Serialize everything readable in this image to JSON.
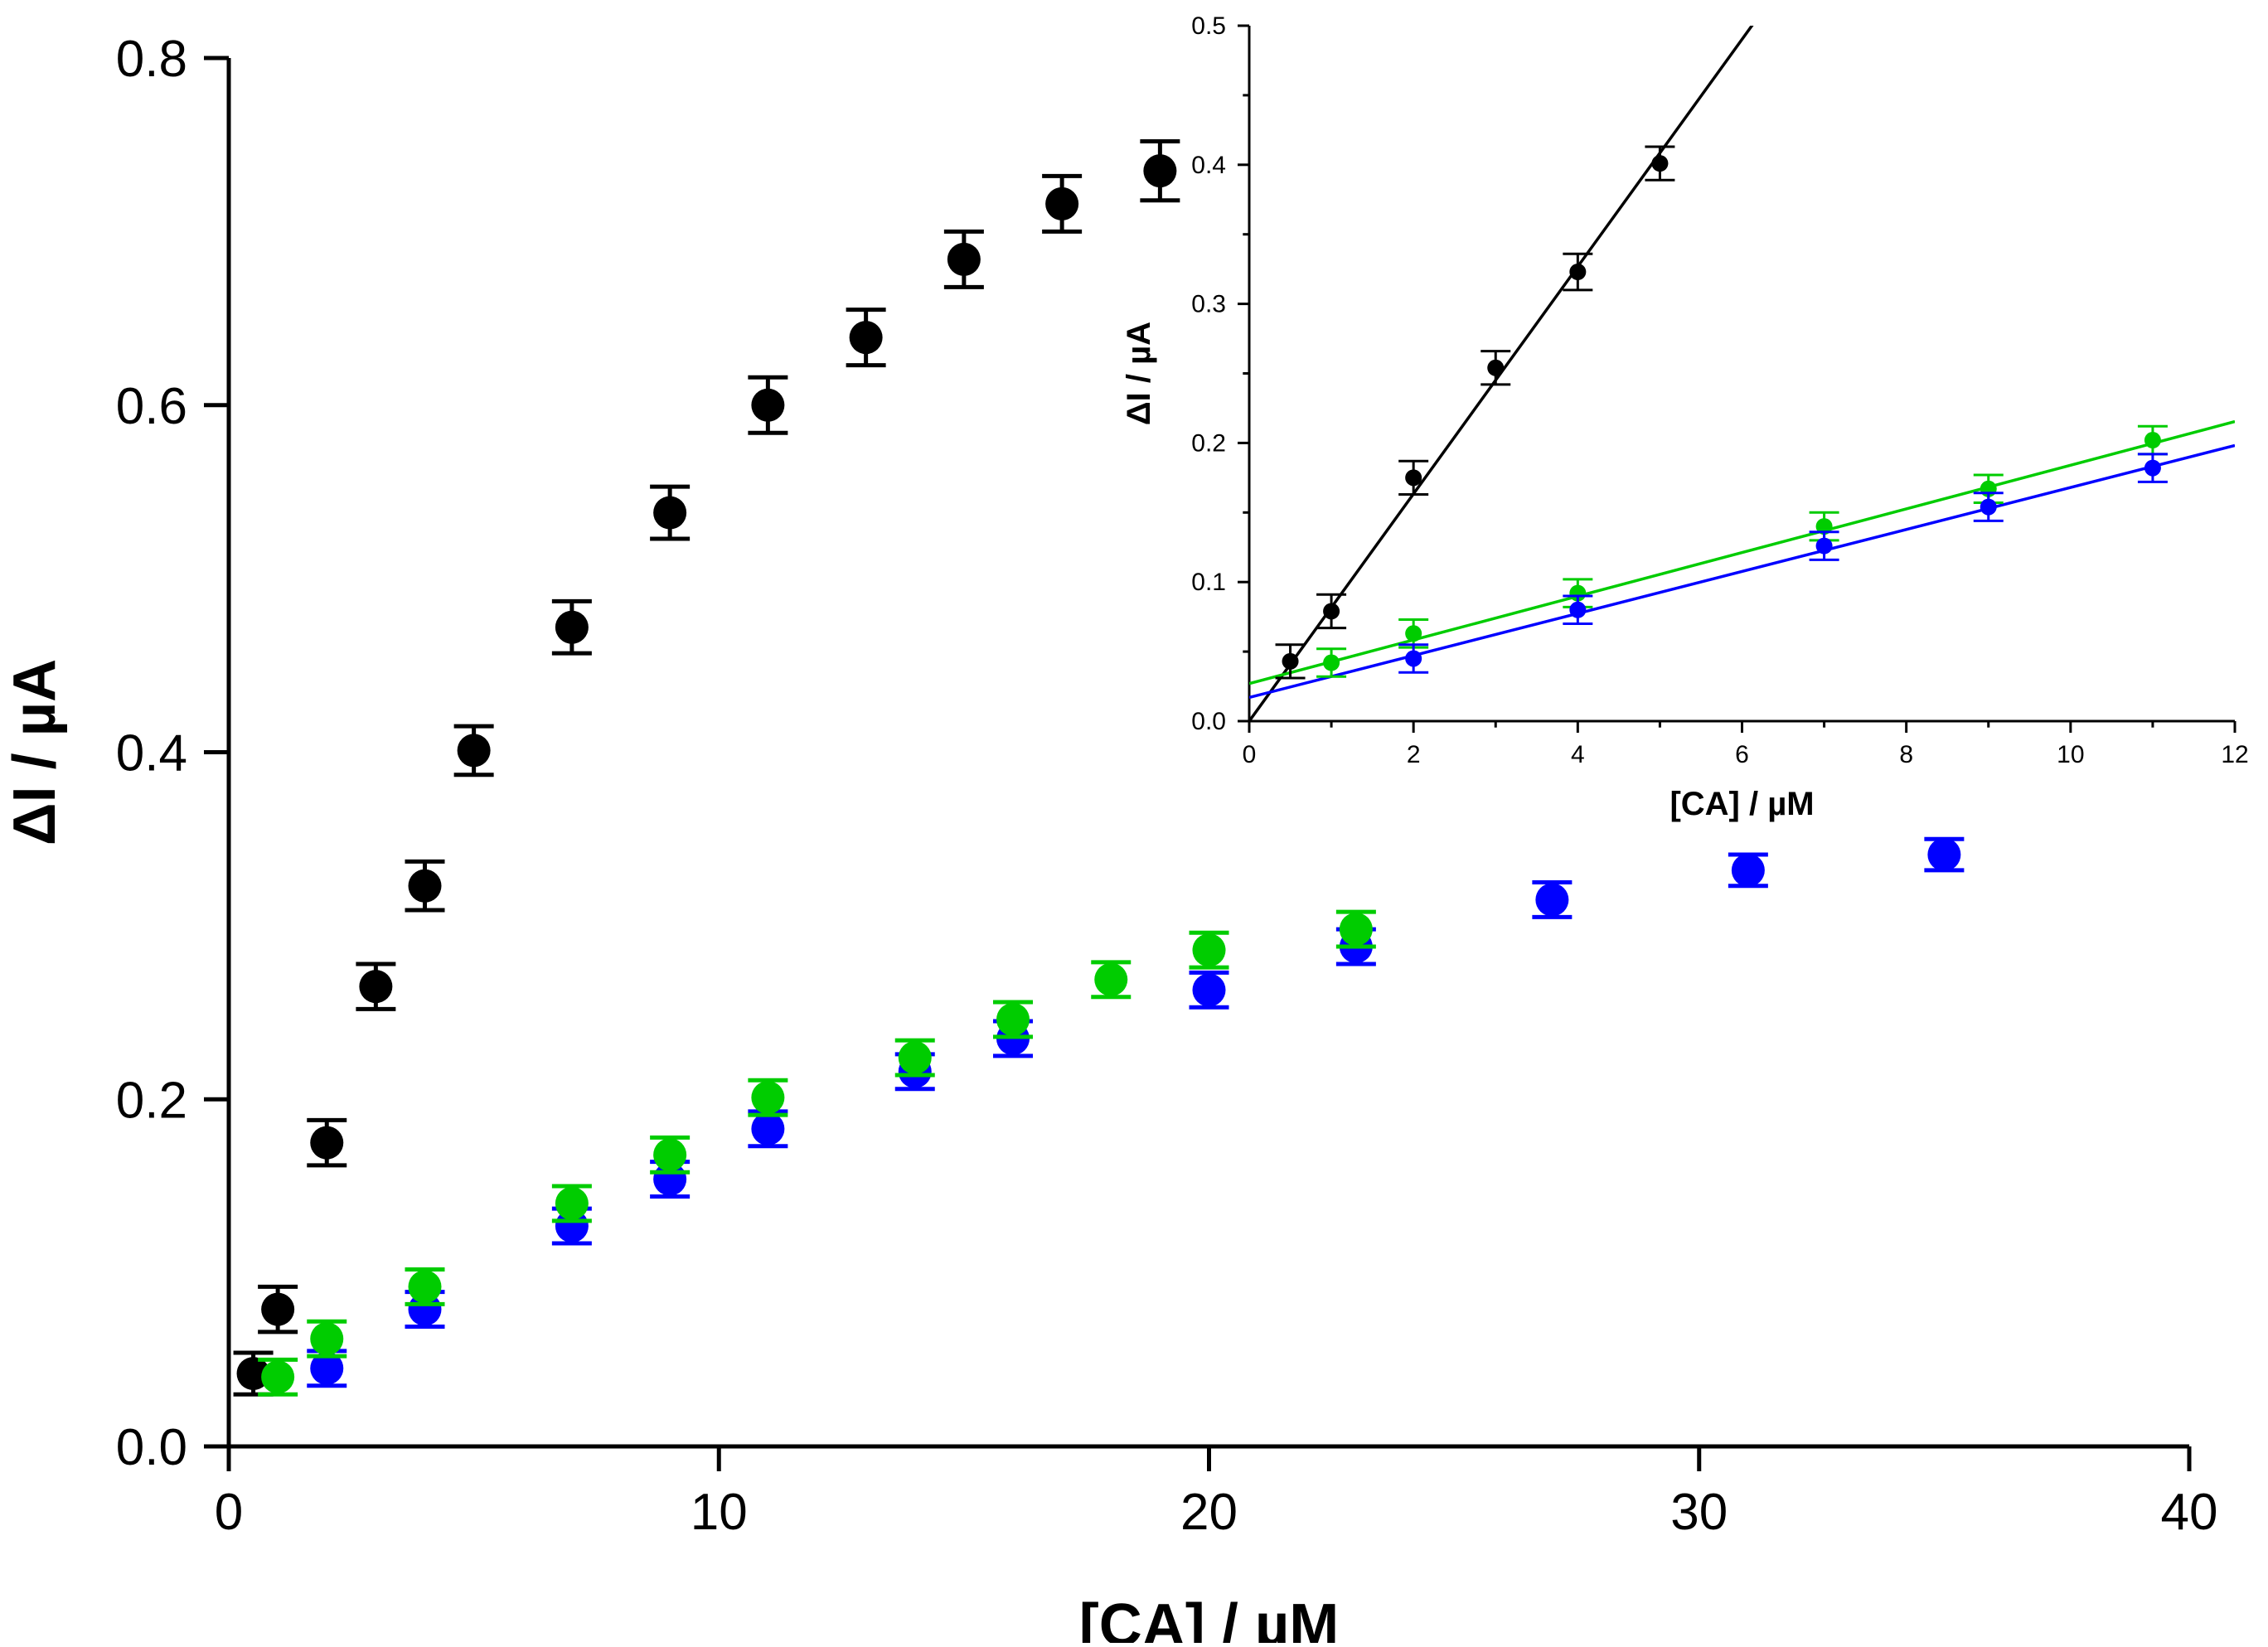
{
  "chart_data": [
    {
      "type": "scatter",
      "xlabel": "[CA] / µM",
      "ylabel": "ΔI / µA",
      "xlim": [
        0,
        40
      ],
      "ylim": [
        0,
        0.8
      ],
      "x_ticks": [
        "0",
        "10",
        "20",
        "30",
        "40"
      ],
      "y_ticks": [
        "0.0",
        "0.2",
        "0.4",
        "0.6",
        "0.8"
      ],
      "series": [
        {
          "name": "black",
          "color": "#000000",
          "x": [
            0.5,
            1,
            2,
            3,
            4,
            5,
            7,
            9,
            11,
            13,
            15,
            17,
            19
          ],
          "y": [
            0.042,
            0.079,
            0.175,
            0.265,
            0.323,
            0.401,
            0.472,
            0.538,
            0.6,
            0.639,
            0.684,
            0.716,
            0.735
          ],
          "err": [
            0.012,
            0.013,
            0.013,
            0.013,
            0.014,
            0.014,
            0.015,
            0.015,
            0.016,
            0.016,
            0.016,
            0.016,
            0.017
          ]
        },
        {
          "name": "blue",
          "color": "#0000ff",
          "x": [
            2,
            4,
            7,
            9,
            11,
            14,
            16,
            20,
            23,
            27,
            31,
            35
          ],
          "y": [
            0.045,
            0.079,
            0.127,
            0.154,
            0.183,
            0.216,
            0.235,
            0.263,
            0.288,
            0.315,
            0.332,
            0.341
          ],
          "err": [
            0.01,
            0.01,
            0.01,
            0.01,
            0.01,
            0.01,
            0.01,
            0.01,
            0.01,
            0.01,
            0.009,
            0.009
          ]
        },
        {
          "name": "green",
          "color": "#00cc00",
          "x": [
            1,
            2,
            4,
            7,
            9,
            11,
            14,
            16,
            18,
            20,
            23
          ],
          "y": [
            0.04,
            0.062,
            0.092,
            0.14,
            0.168,
            0.201,
            0.224,
            0.246,
            0.269,
            0.286,
            0.298
          ],
          "err": [
            0.01,
            0.01,
            0.01,
            0.01,
            0.01,
            0.01,
            0.01,
            0.01,
            0.01,
            0.01,
            0.01
          ]
        }
      ]
    },
    {
      "type": "scatter",
      "role": "inset",
      "xlabel": "[CA] / µM",
      "ylabel": "ΔI / µA",
      "xlim": [
        0,
        12
      ],
      "ylim": [
        0,
        0.5
      ],
      "x_ticks": [
        "0",
        "2",
        "4",
        "6",
        "8",
        "10",
        "12"
      ],
      "y_ticks": [
        "0.0",
        "0.1",
        "0.2",
        "0.3",
        "0.4",
        "0.5"
      ],
      "series": [
        {
          "name": "black",
          "color": "#000000",
          "x": [
            0.5,
            1,
            2,
            3,
            4,
            5
          ],
          "y": [
            0.043,
            0.079,
            0.175,
            0.254,
            0.323,
            0.401
          ],
          "err": [
            0.012,
            0.012,
            0.012,
            0.012,
            0.013,
            0.012
          ],
          "fit": {
            "slope": 0.0817,
            "intercept": 0.0
          }
        },
        {
          "name": "green",
          "color": "#00cc00",
          "x": [
            1,
            2,
            4,
            7,
            9,
            11
          ],
          "y": [
            0.042,
            0.063,
            0.092,
            0.14,
            0.167,
            0.202
          ],
          "err": [
            0.01,
            0.01,
            0.01,
            0.01,
            0.01,
            0.01
          ],
          "fit": {
            "slope": 0.0157,
            "intercept": 0.027
          }
        },
        {
          "name": "blue",
          "color": "#0000ff",
          "x": [
            2,
            4,
            7,
            9,
            11
          ],
          "y": [
            0.045,
            0.08,
            0.126,
            0.154,
            0.182
          ],
          "err": [
            0.01,
            0.01,
            0.01,
            0.01,
            0.01
          ],
          "fit": {
            "slope": 0.0151,
            "intercept": 0.017
          }
        }
      ]
    }
  ]
}
